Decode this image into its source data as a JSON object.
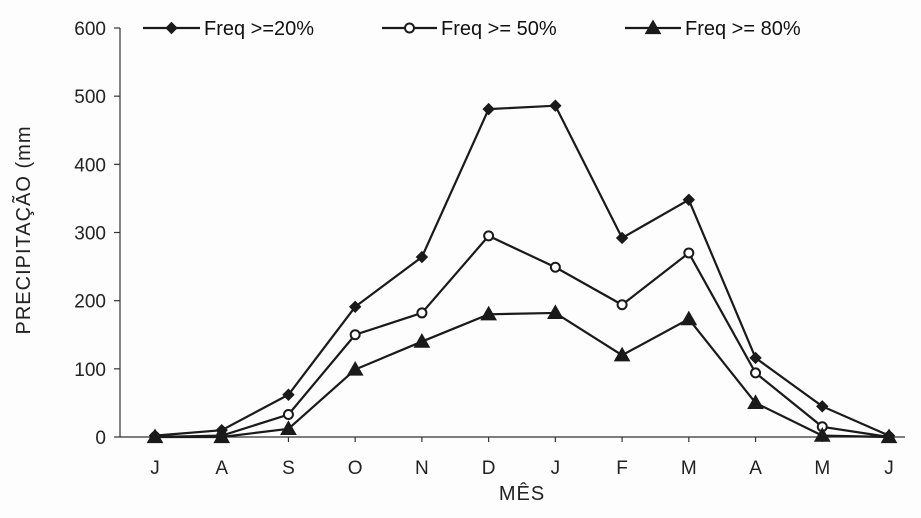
{
  "chart_data": {
    "type": "line",
    "categories": [
      "J",
      "A",
      "S",
      "O",
      "N",
      "D",
      "J",
      "F",
      "M",
      "A",
      "M",
      "J"
    ],
    "series": [
      {
        "name": "Freq >=20%",
        "marker": "diamond",
        "values": [
          2,
          10,
          62,
          191,
          264,
          481,
          486,
          292,
          348,
          116,
          45,
          2
        ]
      },
      {
        "name": "Freq >= 50%",
        "marker": "circle",
        "values": [
          0,
          2,
          33,
          150,
          182,
          295,
          249,
          194,
          270,
          94,
          15,
          0
        ]
      },
      {
        "name": "Freq >= 80%",
        "marker": "triangle",
        "values": [
          0,
          0,
          12,
          99,
          140,
          180,
          182,
          120,
          173,
          50,
          2,
          0
        ]
      }
    ],
    "xlabel": "MÊS",
    "ylabel": "PRECIPITAÇÃO (mm",
    "ylim": [
      0,
      600
    ],
    "yticks": [
      0,
      100,
      200,
      300,
      400,
      500,
      600
    ],
    "grid": false,
    "legend_position": "top",
    "colors": {
      "line": "#1a1a1a",
      "marker_fill_dark": "#1a1a1a",
      "marker_fill_open": "#ffffff",
      "background": "#fdfdfd"
    }
  }
}
